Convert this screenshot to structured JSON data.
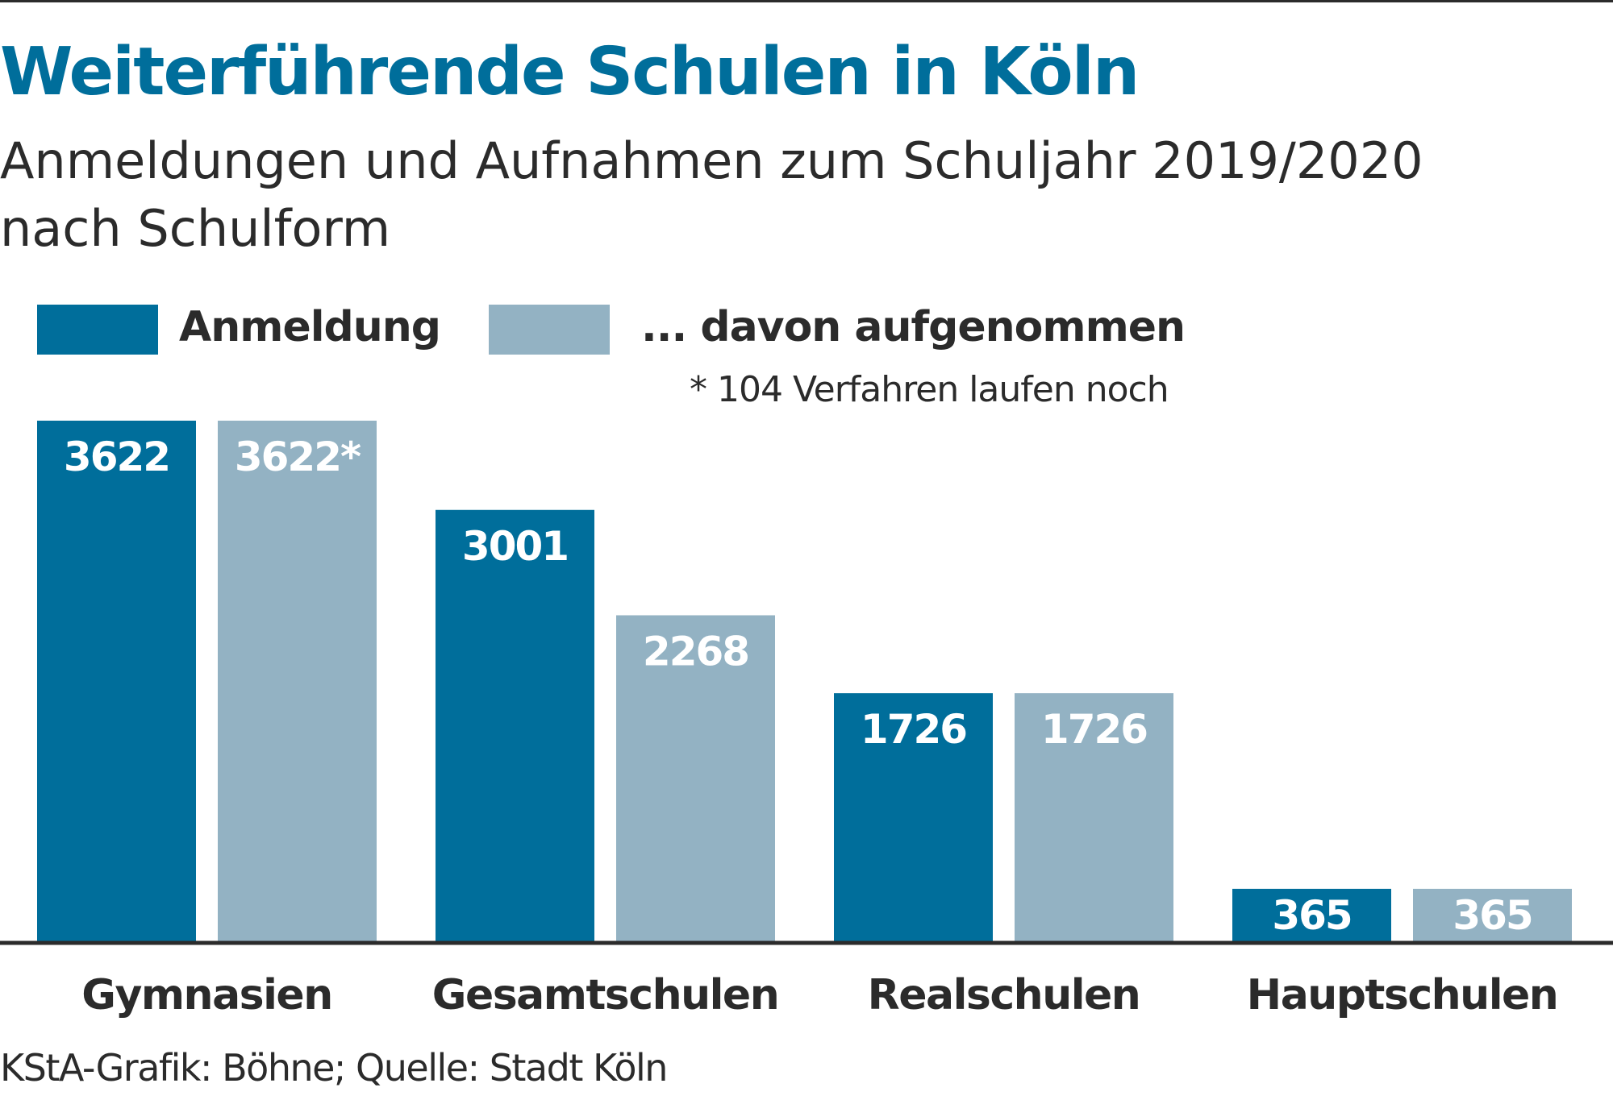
{
  "header": {
    "title": "Weiterführende Schulen in Köln",
    "subtitle_line1": "Anmeldungen und Aufnahmen zum Schuljahr 2019/2020",
    "subtitle_line2": "nach Schulform"
  },
  "legend": [
    {
      "label": "Anmeldung",
      "color": "#006e9b"
    },
    {
      "label": "... davon aufgenommen",
      "color": "#93b2c3"
    }
  ],
  "footnote": "* 104 Verfahren laufen noch",
  "source": "KStA-Grafik: Böhne; Quelle: Stadt Köln",
  "chart_data": {
    "type": "bar",
    "title": "Weiterführende Schulen in Köln",
    "subtitle": "Anmeldungen und Aufnahmen zum Schuljahr 2019/2020 nach Schulform",
    "categories": [
      "Gymnasien",
      "Gesamtschulen",
      "Realschulen",
      "Hauptschulen"
    ],
    "series": [
      {
        "name": "Anmeldung",
        "values": [
          3622,
          3001,
          1726,
          365
        ],
        "labels": [
          "3622",
          "3001",
          "1726",
          "365"
        ],
        "color": "#006e9b"
      },
      {
        "name": "... davon aufgenommen",
        "values": [
          3622,
          2268,
          1726,
          365
        ],
        "labels": [
          "3622*",
          "2268",
          "1726",
          "365"
        ],
        "color": "#93b2c3"
      }
    ],
    "xlabel": "",
    "ylabel": "",
    "ylim": [
      0,
      3622
    ],
    "grid": false,
    "legend_position": "top-left"
  }
}
